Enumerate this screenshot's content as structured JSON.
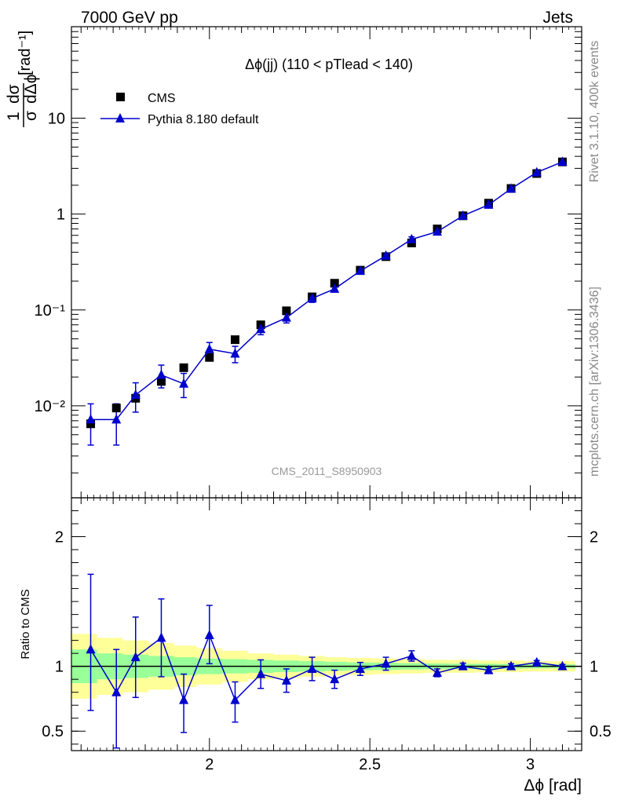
{
  "header": {
    "left": "7000 GeV pp",
    "right": "Jets"
  },
  "side_text": {
    "upper": "Rivet 3.1.10,  400k events",
    "lower": "mcplots.cern.ch [arXiv:1306.3436]"
  },
  "chart_data": [
    {
      "type": "scatter",
      "title": "Δϕ(jj) (110 < pTlead <  140)",
      "watermark": "CMS_2011_S8950903",
      "ylabel": "1/σ dσ/dΔϕ [rad⁻¹]",
      "yscale": "log",
      "xlim": [
        1.57,
        3.16
      ],
      "ylim": [
        0.0011,
        90
      ],
      "yticks": [
        {
          "value": 0.01,
          "label": "10⁻²"
        },
        {
          "value": 0.1,
          "label": "10⁻¹"
        },
        {
          "value": 1,
          "label": "1"
        },
        {
          "value": 10,
          "label": "10"
        }
      ],
      "legend_position": "top-left",
      "series": [
        {
          "name": "CMS",
          "marker": "square",
          "color": "#000000",
          "x": [
            1.63,
            1.71,
            1.77,
            1.85,
            1.92,
            2.0,
            2.08,
            2.16,
            2.24,
            2.32,
            2.39,
            2.47,
            2.55,
            2.63,
            2.71,
            2.79,
            2.87,
            2.94,
            3.02,
            3.1
          ],
          "y": [
            0.0065,
            0.0095,
            0.012,
            0.018,
            0.025,
            0.032,
            0.049,
            0.07,
            0.098,
            0.137,
            0.19,
            0.26,
            0.36,
            0.5,
            0.7,
            0.96,
            1.3,
            1.85,
            2.65,
            3.5
          ]
        },
        {
          "name": "Pythia 8.180 default",
          "marker": "triangle",
          "color": "#0000cc",
          "x": [
            1.63,
            1.71,
            1.77,
            1.85,
            1.92,
            2.0,
            2.08,
            2.16,
            2.24,
            2.32,
            2.39,
            2.47,
            2.55,
            2.63,
            2.71,
            2.79,
            2.87,
            2.94,
            3.02,
            3.1
          ],
          "y": [
            0.0072,
            0.0072,
            0.013,
            0.021,
            0.017,
            0.039,
            0.035,
            0.063,
            0.083,
            0.132,
            0.166,
            0.255,
            0.368,
            0.545,
            0.655,
            0.96,
            1.25,
            1.84,
            2.72,
            3.5
          ],
          "err_low": [
            0.0033,
            0.0033,
            0.0044,
            0.0056,
            0.0048,
            0.0068,
            0.0068,
            0.0078,
            0.0098,
            0.012,
            0.012,
            0.015,
            0.017,
            0.034,
            0.03,
            0.04,
            0.05,
            0.06,
            0.05,
            0.05
          ],
          "err_high": [
            0.0033,
            0.0033,
            0.0044,
            0.0056,
            0.0048,
            0.0068,
            0.0068,
            0.0078,
            0.0098,
            0.012,
            0.012,
            0.015,
            0.017,
            0.034,
            0.03,
            0.04,
            0.05,
            0.06,
            0.05,
            0.05
          ]
        }
      ]
    },
    {
      "type": "scatter",
      "ylabel": "Ratio to CMS",
      "xlabel": "Δϕ [rad]",
      "xlim": [
        1.57,
        3.16
      ],
      "ylim": [
        0.35,
        2.3
      ],
      "xticks": [
        {
          "value": 2,
          "label": "2"
        },
        {
          "value": 2.5,
          "label": "2.5"
        },
        {
          "value": 3,
          "label": "3"
        }
      ],
      "yticks": [
        {
          "value": 0.5,
          "label": "0.5"
        },
        {
          "value": 1,
          "label": "1"
        },
        {
          "value": 2,
          "label": "2"
        }
      ],
      "bands": {
        "bin_edges": [
          1.57,
          1.65,
          1.73,
          1.81,
          1.89,
          1.96,
          2.04,
          2.12,
          2.2,
          2.28,
          2.36,
          2.43,
          2.51,
          2.59,
          2.67,
          2.75,
          2.83,
          2.9,
          2.98,
          3.06,
          3.14
        ],
        "outer_color": "#ffff99",
        "inner_color": "#99ff99",
        "outer": [
          0.25,
          0.22,
          0.2,
          0.18,
          0.16,
          0.14,
          0.12,
          0.1,
          0.09,
          0.08,
          0.07,
          0.065,
          0.06,
          0.055,
          0.05,
          0.05,
          0.045,
          0.045,
          0.04,
          0.04
        ],
        "inner": [
          0.13,
          0.1,
          0.09,
          0.08,
          0.07,
          0.06,
          0.055,
          0.05,
          0.045,
          0.04,
          0.035,
          0.03,
          0.028,
          0.025,
          0.022,
          0.02,
          0.02,
          0.018,
          0.016,
          0.015
        ]
      },
      "series": [
        {
          "name": "Pythia 8.180 default",
          "marker": "triangle",
          "color": "#0000cc",
          "x": [
            1.63,
            1.71,
            1.77,
            1.85,
            1.92,
            2.0,
            2.08,
            2.16,
            2.24,
            2.32,
            2.39,
            2.47,
            2.55,
            2.63,
            2.71,
            2.79,
            2.87,
            2.94,
            3.02,
            3.1
          ],
          "y": [
            1.13,
            0.8,
            1.07,
            1.22,
            0.74,
            1.24,
            0.74,
            0.94,
            0.89,
            0.98,
            0.9,
            0.98,
            1.02,
            1.08,
            0.95,
            1.0,
            0.97,
            1.0,
            1.03,
            1.0
          ],
          "err_low": [
            0.47,
            0.43,
            0.31,
            0.3,
            0.25,
            0.22,
            0.17,
            0.11,
            0.09,
            0.09,
            0.07,
            0.05,
            0.05,
            0.04,
            0.03,
            0.025,
            0.02,
            0.02,
            0.015,
            0.015
          ],
          "err_high": [
            0.58,
            0.33,
            0.31,
            0.3,
            0.2,
            0.23,
            0.14,
            0.11,
            0.09,
            0.09,
            0.07,
            0.05,
            0.05,
            0.04,
            0.03,
            0.025,
            0.02,
            0.02,
            0.015,
            0.015
          ]
        }
      ]
    }
  ]
}
